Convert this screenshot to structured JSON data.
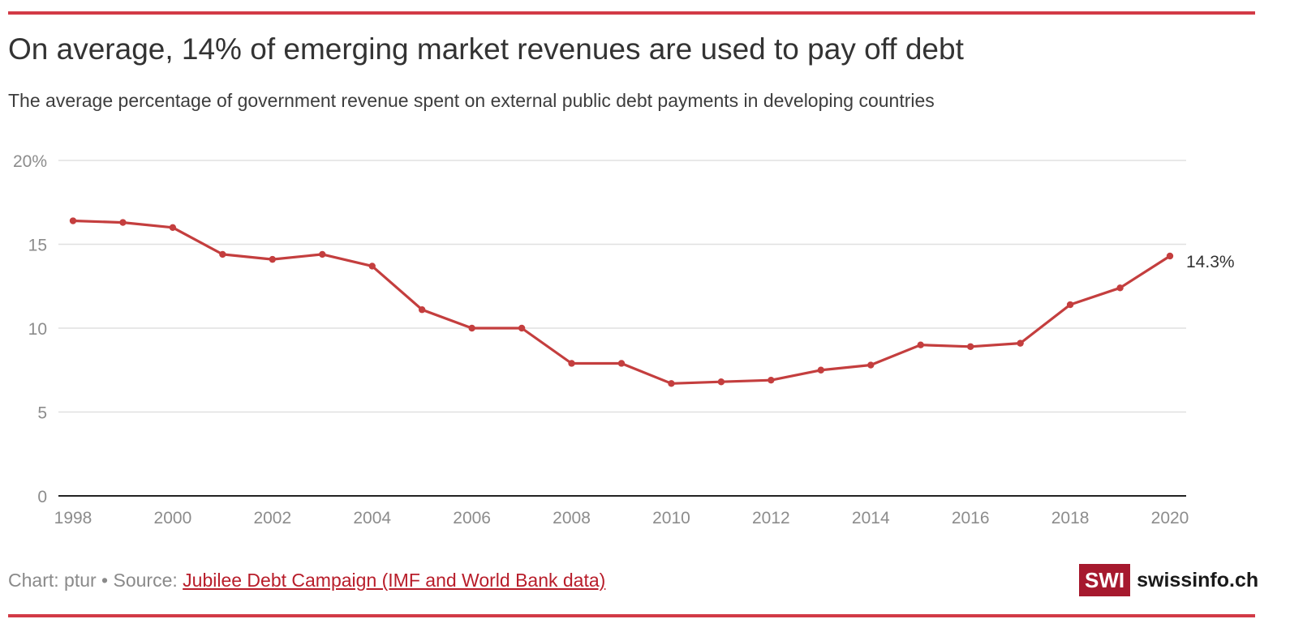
{
  "colors": {
    "accent": "#c43e3e",
    "rule": "#d23a46",
    "grid": "#e0e0e0",
    "axis": "#222222",
    "tick_text": "#8c8c8c",
    "logo_bg": "#a6192e"
  },
  "header": {
    "title": "On average, 14% of emerging market revenues are used to pay off debt",
    "subtitle": "The average percentage of government revenue spent on external public debt payments in developing countries"
  },
  "footer": {
    "chart_credit": "Chart: ptur • Source: ",
    "source_link": "Jubilee Debt Campaign (IMF and World Bank data)"
  },
  "logo": {
    "mark": "SWI",
    "name": "swissinfo.ch"
  },
  "chart_data": {
    "type": "line",
    "title": "On average, 14% of emerging market revenues are used to pay off debt",
    "subtitle": "The average percentage of government revenue spent on external public debt payments in developing countries",
    "x": [
      1998,
      1999,
      2000,
      2001,
      2002,
      2003,
      2004,
      2005,
      2006,
      2007,
      2008,
      2009,
      2010,
      2011,
      2012,
      2013,
      2014,
      2015,
      2016,
      2017,
      2018,
      2019,
      2020
    ],
    "series": [
      {
        "values": [
          16.4,
          16.3,
          16.0,
          14.4,
          14.1,
          14.4,
          13.7,
          11.1,
          10.0,
          10.0,
          7.9,
          7.9,
          6.7,
          6.8,
          6.9,
          7.5,
          7.8,
          9.0,
          8.9,
          9.1,
          11.4,
          12.4,
          14.3
        ]
      }
    ],
    "xlim": [
      1998,
      2020
    ],
    "ylim": [
      0,
      20
    ],
    "x_ticks": [
      1998,
      2000,
      2002,
      2004,
      2006,
      2008,
      2010,
      2012,
      2014,
      2016,
      2018,
      2020
    ],
    "x_tick_labels": [
      "1998",
      "2000",
      "2002",
      "2004",
      "2006",
      "2008",
      "2010",
      "2012",
      "2014",
      "2016",
      "2018",
      "2020"
    ],
    "y_ticks": [
      0,
      5,
      10,
      15,
      20
    ],
    "y_tick_labels": [
      "0",
      "5",
      "10",
      "15",
      "20%"
    ],
    "end_label": "14.3%",
    "grid": true,
    "legend": "none",
    "xlabel": "",
    "ylabel": ""
  }
}
